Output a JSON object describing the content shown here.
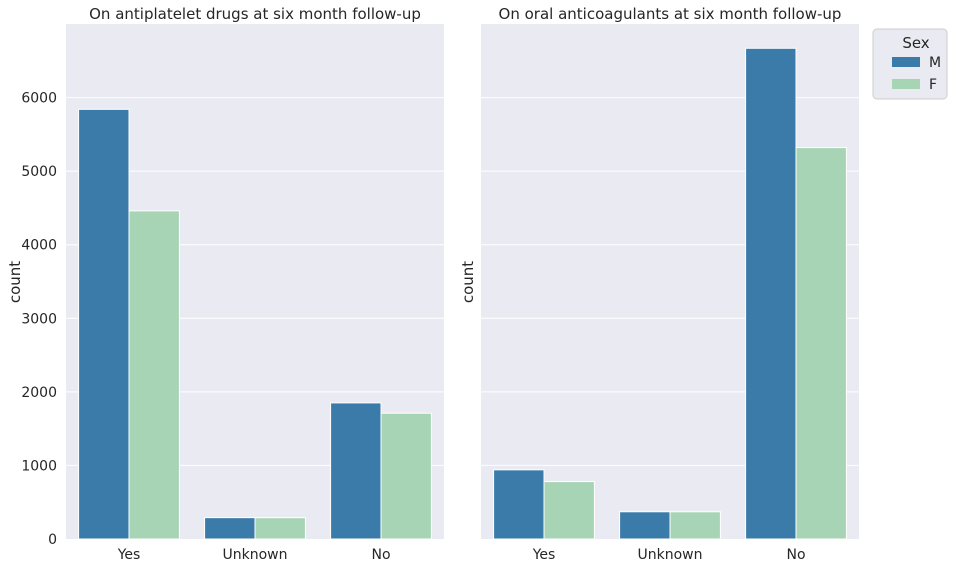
{
  "chart_data": [
    {
      "type": "bar",
      "title": "On antiplatelet drugs at six month follow-up",
      "xlabel": "",
      "ylabel": "count",
      "categories": [
        "Yes",
        "Unknown",
        "No"
      ],
      "series": [
        {
          "name": "M",
          "values": [
            5840,
            290,
            1850
          ]
        },
        {
          "name": "F",
          "values": [
            4460,
            290,
            1710
          ]
        }
      ],
      "ylim": [
        0,
        7000
      ],
      "yticks": [
        "0",
        "1000",
        "2000",
        "3000",
        "4000",
        "5000",
        "6000"
      ],
      "grid": true
    },
    {
      "type": "bar",
      "title": "On oral anticoagulants at six month follow-up",
      "xlabel": "",
      "ylabel": "count",
      "categories": [
        "Yes",
        "Unknown",
        "No"
      ],
      "series": [
        {
          "name": "M",
          "values": [
            940,
            370,
            6670
          ]
        },
        {
          "name": "F",
          "values": [
            780,
            370,
            5320
          ]
        }
      ],
      "ylim": [
        0,
        7000
      ],
      "grid": true,
      "shared_y": true
    }
  ],
  "legend": {
    "title": "Sex",
    "placement": "outside-top-right",
    "entries": [
      {
        "label": "M",
        "color": "#3a7ba9"
      },
      {
        "label": "F",
        "color": "#a7d4b5"
      }
    ]
  },
  "colors": {
    "M": "#3a7ba9",
    "F": "#a7d4b5",
    "plot_background": "#eaeaf2",
    "grid": "#ffffff"
  }
}
